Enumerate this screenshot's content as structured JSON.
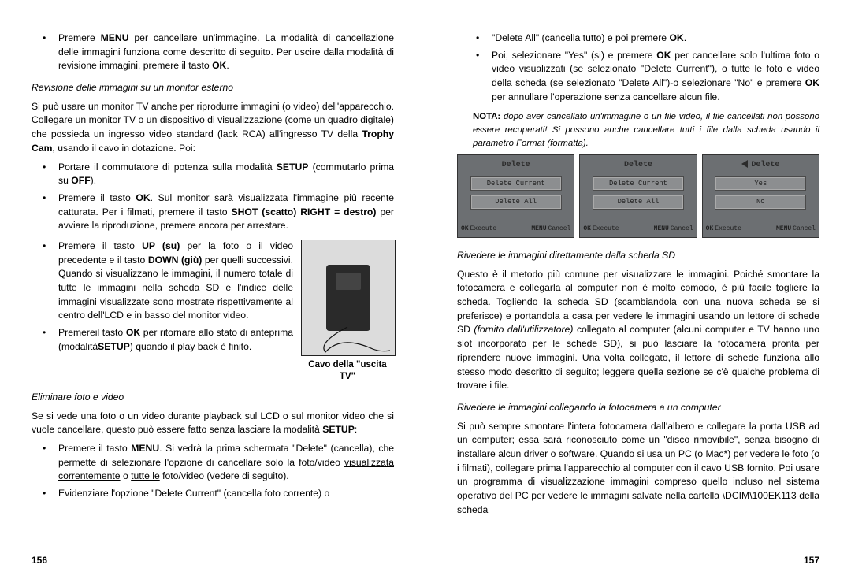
{
  "leftPage": {
    "topList": [
      "Premere <b>MENU</b> per cancellare un'immagine. La modalità di cancellazione delle immagini funziona come descritto di seguito. Per uscire dalla modalità di revisione immagini, premere il tasto <b>OK</b>."
    ],
    "h1": "Revisione delle immagini su un monitor esterno",
    "p1": "Si può usare un monitor TV anche per riprodurre immagini (o video) dell'apparecchio. Collegare un monitor TV o un dispositivo di visualizzazione (come un quadro digitale) che possieda un ingresso video standard (lack RCA) all'ingresso TV della <b>Trophy Cam</b>, usando il cavo in dotazione. Poi:",
    "list1": [
      "Portare il commutatore di potenza sulla modalità <b>SETUP</b> (commutarlo prima su <b>OFF</b>).",
      "Premere il tasto <b>OK</b>. Sul monitor sarà visualizzata l'immagine più recente catturata. Per i filmati, premere il tasto <b>SHOT (scatto) RIGHT = destro)</b> per avviare la riproduzione, premere ancora per arrestare."
    ],
    "list1b": [
      "Premere il tasto <b>UP (su)</b> per la foto o il video precedente e il tasto <b>DOWN (giù)</b> per quelli successivi. Quando si visualizzano le immagini, il numero totale di tutte le immagini nella scheda SD e l'indice delle immagini visualizzate sono mostrate rispettivamente al centro dell'LCD e in basso del monitor video.",
      "Premereil tasto <b>OK</b> per ritornare allo stato di anteprima (modalità<b>SETUP</b>) quando il play back è finito."
    ],
    "caption": "Cavo della \"uscita TV\"",
    "h2": "Eliminare foto e video",
    "p2": "Se si vede una foto o un video durante playback sul LCD o sul monitor video che si vuole cancellare, questo può essere fatto senza lasciare la modalità <b>SETUP</b>:",
    "list2": [
      "Premere il tasto <b>MENU</b>. Si vedrà la prima schermata \"Delete\" (cancella), che permette di selezionare l'opzione di cancellare solo la foto/video <u>visualizzata correntemente</u> o <u>tutte le</u> foto/video (vedere di seguito).",
      "Evidenziare l'opzione \"Delete Current\" (cancella foto corrente) o"
    ],
    "pageNum": "156"
  },
  "rightPage": {
    "topList": [
      "\"Delete All\" (cancella tutto) e poi premere <b>OK</b>.",
      "Poi, selezionare \"Yes\" (si) e premere <b>OK</b> per cancellare solo l'ultima foto o video visualizzati (se selezionato \"Delete Current\"), o tutte le foto e video della scheda (se selezionato \"Delete All\")-o selezionare \"No\" e premere <b>OK</b> per annullare l'operazione senza cancellare alcun file."
    ],
    "nota": "<span class=\"lbl\">NOTA:</span> <i>dopo aver cancellato un'immagine o un file video, il file cancellati non possono essere recuperati! Si possono anche cancellare tutti i file dalla scheda usando il parametro Format (formatta).</i>",
    "screens": [
      {
        "title": "Delete",
        "buttons": [
          "Delete Current",
          "Delete All"
        ],
        "arrow": false
      },
      {
        "title": "Delete",
        "buttons": [
          "Delete Current",
          "Delete All"
        ],
        "arrow": false
      },
      {
        "title": "Delete",
        "buttons": [
          "Yes",
          "No"
        ],
        "arrow": true
      }
    ],
    "screenFoot": {
      "ok": "OK",
      "exec": "Execute",
      "menu": "MENU",
      "cancel": "Cancel"
    },
    "h3": "Rivedere le immagini direttamente dalla scheda SD",
    "p3": "Questo è il metodo più comune per visualizzare le immagini. Poiché smontare la fotocamera e collegarla al computer non è molto comodo, è più facile togliere la scheda. Togliendo la scheda SD (scambiandola con una nuova scheda se si preferisce) e portandola a casa per vedere le immagini usando un lettore di schede SD <i>(fornito dall'utilizzatore)</i> collegato al computer (alcuni computer e TV hanno uno slot incorporato per le schede SD), si può lasciare la fotocamera pronta per riprendere nuove immagini. Una volta collegato, il lettore di schede funziona allo stesso modo descritto di seguito; leggere quella sezione se c'è qualche problema di trovare i file.",
    "h4": "Rivedere le immagini collegando la fotocamera a un computer",
    "p4": "Si può sempre smontare l'intera fotocamera dall'albero e collegare la porta USB ad un computer; essa sarà riconosciuto come un \"disco rimovibile\", senza bisogno di installare alcun driver o software. Quando si usa un PC (o Mac*) per vedere le foto (o i filmati), collegare prima l'apparecchio al computer con il cavo USB fornito. Poi usare un programma di visualizzazione immagini compreso quello  incluso nel sistema operativo del PC per vedere le immagini salvate nella cartella \\DCIM\\100EK113 della scheda",
    "pageNum": "157"
  }
}
